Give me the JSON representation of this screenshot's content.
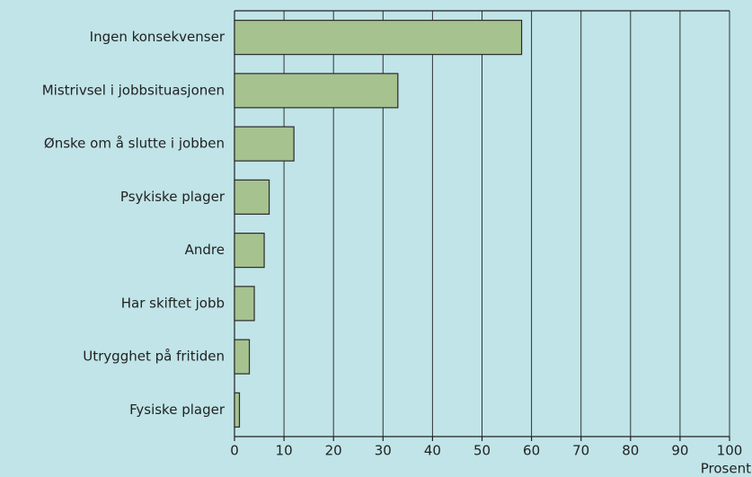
{
  "chart_data": {
    "type": "bar",
    "orientation": "horizontal",
    "x_label": "Prosent",
    "categories": [
      "Ingen konsekvenser",
      "Mistrivsel i jobbsituasjonen",
      "Ønske om å slutte i jobben",
      "Psykiske plager",
      "Andre",
      "Har skiftet jobb",
      "Utrygghet på fritiden",
      "Fysiske plager"
    ],
    "values": [
      58,
      33,
      12,
      7,
      6,
      4,
      3,
      1
    ],
    "color": "#a6c28f",
    "xlim": [
      0,
      100
    ],
    "xticks": [
      0,
      10,
      20,
      30,
      40,
      50,
      60,
      70,
      80,
      90,
      100
    ],
    "grid": true
  }
}
